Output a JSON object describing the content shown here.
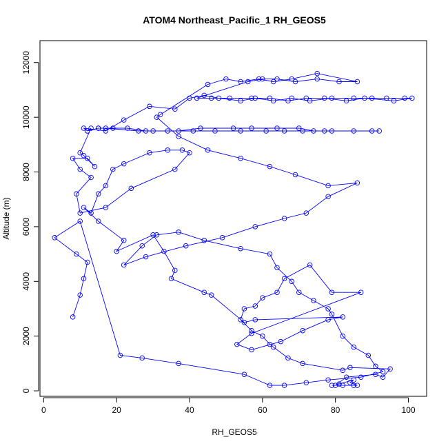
{
  "chart_data": {
    "type": "line",
    "title": "ATOM4 Northeast_Pacific_1 RH_GEOS5",
    "xlabel": "RH_GEOS5",
    "ylabel": "Altitude (m)",
    "xlim": [
      -1,
      105
    ],
    "ylim": [
      -200,
      12800
    ],
    "x_ticks": [
      0,
      20,
      40,
      60,
      80,
      100
    ],
    "y_ticks": [
      0,
      2000,
      4000,
      6000,
      8000,
      10000,
      12000
    ],
    "grid": false,
    "legend": "none",
    "marker": "open-circle",
    "color": "#0000ff",
    "series": [
      {
        "points": [
          [
            79,
            200
          ],
          [
            82,
            200
          ],
          [
            85,
            200
          ],
          [
            86,
            200
          ],
          [
            84,
            300
          ],
          [
            85,
            400
          ],
          [
            81,
            250
          ],
          [
            80,
            200
          ],
          [
            83,
            500
          ],
          [
            91,
            600
          ],
          [
            93,
            500
          ],
          [
            95,
            800
          ],
          [
            84,
            850
          ],
          [
            82,
            750
          ],
          [
            71,
            1000
          ],
          [
            67,
            1200
          ],
          [
            63,
            1600
          ],
          [
            62,
            1700
          ],
          [
            60,
            2000
          ],
          [
            57,
            2200
          ],
          [
            54,
            2600
          ],
          [
            55,
            3000
          ],
          [
            58,
            3100
          ],
          [
            60,
            3400
          ],
          [
            64,
            3600
          ],
          [
            66,
            4100
          ],
          [
            73,
            4600
          ],
          [
            79,
            3600
          ],
          [
            87,
            3600
          ],
          [
            57,
            2100
          ],
          [
            53,
            1700
          ],
          [
            57,
            1500
          ],
          [
            65,
            1800
          ],
          [
            71,
            2200
          ],
          [
            78,
            2600
          ],
          [
            82,
            2700
          ],
          [
            58,
            2600
          ],
          [
            55,
            2500
          ],
          [
            46,
            3500
          ],
          [
            44,
            3600
          ],
          [
            35,
            4100
          ],
          [
            36,
            4400
          ],
          [
            33,
            5100
          ],
          [
            30,
            5700
          ],
          [
            20,
            5100
          ],
          [
            22,
            5500
          ],
          [
            15,
            6200
          ],
          [
            11,
            6700
          ],
          [
            13,
            6500
          ],
          [
            15,
            7200
          ],
          [
            17,
            7500
          ],
          [
            19,
            8100
          ],
          [
            22,
            8300
          ],
          [
            29,
            8700
          ],
          [
            34,
            8800
          ],
          [
            38,
            8800
          ],
          [
            40,
            8700
          ],
          [
            36,
            8100
          ],
          [
            24,
            7400
          ],
          [
            17,
            6700
          ],
          [
            10,
            6500
          ],
          [
            9,
            7200
          ],
          [
            13,
            7800
          ],
          [
            10,
            8100
          ],
          [
            8,
            8500
          ],
          [
            12,
            8500
          ],
          [
            14,
            8200
          ],
          [
            11,
            8600
          ],
          [
            10,
            8700
          ],
          [
            13,
            9600
          ],
          [
            12,
            9500
          ],
          [
            15,
            9600
          ],
          [
            17,
            9600
          ],
          [
            26,
            9500
          ],
          [
            30,
            9500
          ],
          [
            37,
            9500
          ],
          [
            43,
            9600
          ],
          [
            52,
            9600
          ],
          [
            57,
            9600
          ],
          [
            64,
            9600
          ],
          [
            70,
            9600
          ],
          [
            74,
            9500
          ],
          [
            79,
            9500
          ],
          [
            85,
            9500
          ],
          [
            90,
            9500
          ],
          [
            92,
            9500
          ],
          [
            77,
            9500
          ],
          [
            71,
            9500
          ],
          [
            66,
            9500
          ],
          [
            61,
            9500
          ],
          [
            54,
            9500
          ],
          [
            47,
            9500
          ],
          [
            41,
            9500
          ],
          [
            34,
            9500
          ],
          [
            28,
            9500
          ],
          [
            23,
            9600
          ],
          [
            19,
            9600
          ],
          [
            15,
            9600
          ],
          [
            12,
            9500
          ],
          [
            11,
            9600
          ],
          [
            17,
            9500
          ],
          [
            22,
            9900
          ],
          [
            29,
            10400
          ],
          [
            36,
            10300
          ],
          [
            40,
            10700
          ],
          [
            44,
            10800
          ],
          [
            48,
            10700
          ],
          [
            54,
            10600
          ],
          [
            58,
            10700
          ],
          [
            63,
            10600
          ],
          [
            68,
            10700
          ],
          [
            73,
            10600
          ],
          [
            79,
            10700
          ],
          [
            85,
            10700
          ],
          [
            90,
            10700
          ],
          [
            94,
            10700
          ],
          [
            99,
            10700
          ],
          [
            101,
            10700
          ],
          [
            96,
            10600
          ],
          [
            88,
            10700
          ],
          [
            83,
            10600
          ],
          [
            77,
            10700
          ],
          [
            72,
            10700
          ],
          [
            67,
            10600
          ],
          [
            62,
            10700
          ],
          [
            57,
            10700
          ],
          [
            51,
            10700
          ],
          [
            46,
            10700
          ],
          [
            42,
            10700
          ],
          [
            56,
            11300
          ],
          [
            60,
            11400
          ],
          [
            64,
            11400
          ],
          [
            69,
            11300
          ],
          [
            75,
            11400
          ],
          [
            81,
            11300
          ],
          [
            86,
            11300
          ],
          [
            75,
            11600
          ],
          [
            68,
            11400
          ],
          [
            63,
            11300
          ],
          [
            59,
            11400
          ],
          [
            54,
            11300
          ],
          [
            50,
            11400
          ],
          [
            45,
            11200
          ],
          [
            32,
            10100
          ],
          [
            31,
            10000
          ],
          [
            37,
            9300
          ],
          [
            45,
            8800
          ],
          [
            54,
            8500
          ],
          [
            62,
            8200
          ],
          [
            69,
            7900
          ],
          [
            78,
            7500
          ],
          [
            86,
            7600
          ],
          [
            78,
            7100
          ],
          [
            72,
            6500
          ],
          [
            66,
            6300
          ],
          [
            58,
            6000
          ],
          [
            49,
            5600
          ],
          [
            39,
            5300
          ],
          [
            28,
            4900
          ],
          [
            22,
            4600
          ],
          [
            27,
            5300
          ],
          [
            31,
            5700
          ],
          [
            37,
            5800
          ],
          [
            44,
            5500
          ],
          [
            54,
            5200
          ],
          [
            62,
            5000
          ],
          [
            64,
            4500
          ],
          [
            68,
            4000
          ],
          [
            70,
            3600
          ],
          [
            74,
            3300
          ],
          [
            78,
            3000
          ],
          [
            79,
            2800
          ],
          [
            82,
            2000
          ],
          [
            85,
            1600
          ],
          [
            89,
            1300
          ],
          [
            91,
            900
          ],
          [
            93,
            700
          ],
          [
            87,
            500
          ],
          [
            78,
            400
          ],
          [
            72,
            300
          ],
          [
            66,
            200
          ],
          [
            62,
            200
          ],
          [
            55,
            600
          ],
          [
            37,
            1000
          ],
          [
            27,
            1200
          ],
          [
            21,
            1300
          ],
          [
            10,
            6200
          ],
          [
            3,
            5600
          ],
          [
            9,
            5000
          ],
          [
            12,
            4700
          ],
          [
            11,
            4100
          ],
          [
            10,
            3500
          ],
          [
            8,
            2700
          ]
        ]
      }
    ]
  }
}
